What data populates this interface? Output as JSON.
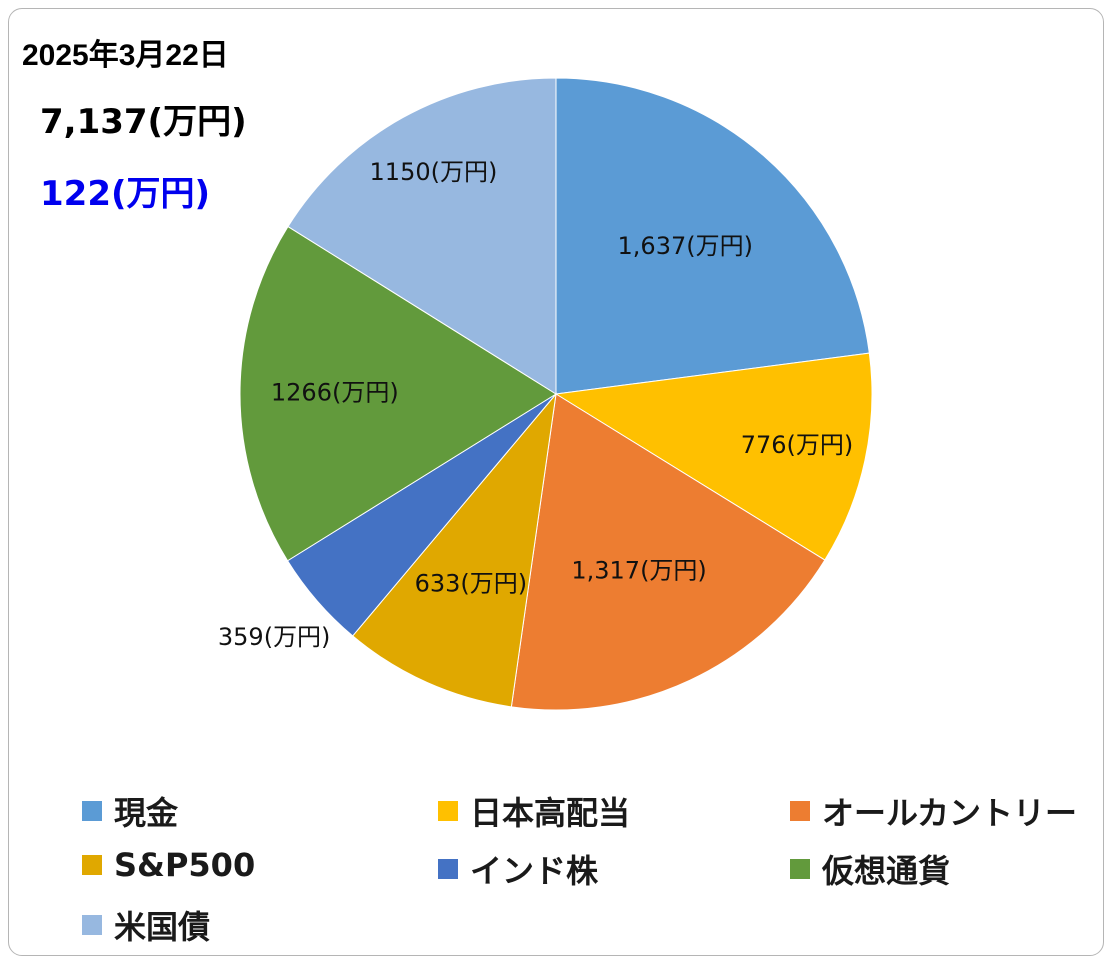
{
  "header": {
    "date": "2025年3月22日",
    "total": "7,137(万円)",
    "change": "122(万円)",
    "change_color": "#0000ee"
  },
  "chart_data": {
    "type": "pie",
    "start_angle": "12 o'clock",
    "direction": "clockwise",
    "legend_position": "bottom",
    "slices": [
      {
        "label": "現金",
        "value": 1637,
        "data_label": "1,637(万円)",
        "color": "#5b9bd5"
      },
      {
        "label": "日本高配当",
        "value": 776,
        "data_label": "776(万円)",
        "color": "#ffc000"
      },
      {
        "label": "オールカントリー",
        "value": 1317,
        "data_label": "1,317(万円)",
        "color": "#ed7d31"
      },
      {
        "label": "S&P500",
        "value": 633,
        "data_label": "633(万円)",
        "color": "#e0a800"
      },
      {
        "label": "インド株",
        "value": 359,
        "data_label": "359(万円)",
        "color": "#4472c4"
      },
      {
        "label": "仮想通貨",
        "value": 1266,
        "data_label": "1266(万円)",
        "color": "#629a3c"
      },
      {
        "label": "米国債",
        "value": 1150,
        "data_label": "1150(万円)",
        "color": "#97b8e0"
      }
    ]
  }
}
